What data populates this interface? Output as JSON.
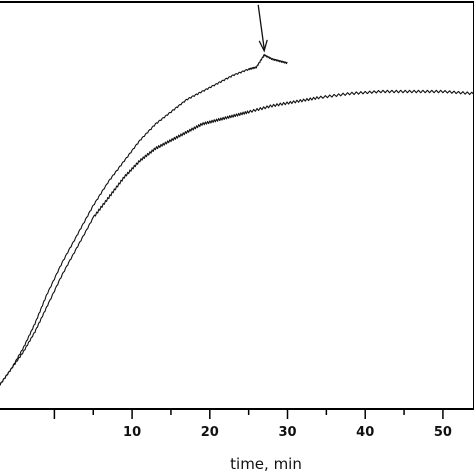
{
  "chart_data": {
    "type": "line",
    "xlabel": "time, min",
    "ylabel": "",
    "title": "",
    "xlim": [
      -7,
      54
    ],
    "ylim": [
      0,
      1
    ],
    "x_ticks_major": [
      10,
      20,
      30,
      40,
      50
    ],
    "x_tick_labels": [
      "10",
      "20",
      "30",
      "40",
      "50"
    ],
    "grid": false,
    "legend": "none",
    "colors": {
      "line": "#111111",
      "axis": "#000000"
    },
    "series": [
      {
        "x": [
          -7,
          -5.5,
          -4,
          -2.5,
          -1,
          1,
          3,
          5,
          7,
          9,
          11,
          13,
          15,
          17,
          19,
          21,
          23,
          25,
          26,
          27,
          28,
          29,
          30
        ],
        "y": [
          0.06,
          0.1,
          0.15,
          0.21,
          0.28,
          0.36,
          0.43,
          0.5,
          0.56,
          0.61,
          0.66,
          0.7,
          0.73,
          0.76,
          0.78,
          0.8,
          0.82,
          0.835,
          0.84,
          0.87,
          0.86,
          0.855,
          0.85
        ]
      },
      {
        "x": [
          -7,
          -5.5,
          -4,
          -2.5,
          -1,
          1,
          3,
          5,
          7,
          9,
          11,
          13,
          15,
          17,
          19,
          21,
          23,
          25,
          28,
          31,
          34,
          38,
          42,
          46,
          50,
          54
        ],
        "y": [
          0.06,
          0.1,
          0.14,
          0.19,
          0.25,
          0.33,
          0.4,
          0.47,
          0.52,
          0.57,
          0.61,
          0.64,
          0.66,
          0.68,
          0.7,
          0.71,
          0.72,
          0.73,
          0.745,
          0.755,
          0.765,
          0.775,
          0.78,
          0.78,
          0.78,
          0.775
        ]
      }
    ],
    "annotations": [
      {
        "type": "arrow",
        "points_to_x": 27,
        "points_to_y": 0.875,
        "direction": "down"
      }
    ]
  }
}
